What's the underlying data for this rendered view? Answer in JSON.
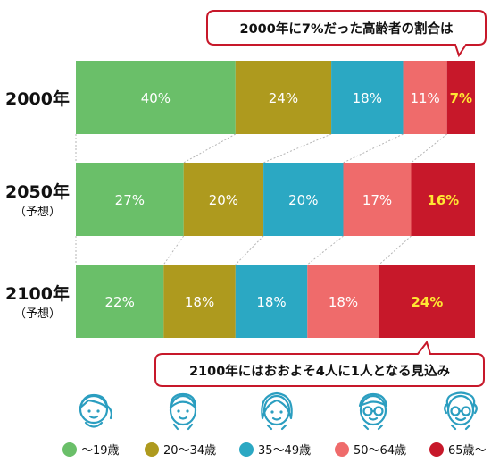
{
  "chart_data": {
    "type": "stacked-bar-horizontal",
    "unit": "%",
    "series": [
      {
        "name": "〜19歳",
        "color": "#6abf69"
      },
      {
        "name": "20〜34歳",
        "color": "#ae9a1e"
      },
      {
        "name": "35〜49歳",
        "color": "#2ba8c3"
      },
      {
        "name": "50〜64歳",
        "color": "#ef6b6b"
      },
      {
        "name": "65歳〜",
        "color": "#c7182a"
      }
    ],
    "rows": [
      {
        "label": "2000年",
        "sublabel": "",
        "values": [
          40,
          24,
          18,
          11,
          7
        ],
        "value_labels": [
          "40%",
          "24%",
          "18%",
          "11%",
          "7%"
        ]
      },
      {
        "label": "2050年",
        "sublabel": "（予想）",
        "values": [
          27,
          20,
          20,
          17,
          16
        ],
        "value_labels": [
          "27%",
          "20%",
          "20%",
          "17%",
          "16%"
        ]
      },
      {
        "label": "2100年",
        "sublabel": "（予想）",
        "values": [
          22,
          18,
          18,
          18,
          24
        ],
        "value_labels": [
          "22%",
          "18%",
          "18%",
          "18%",
          "24%"
        ]
      }
    ],
    "highlight_series": 4,
    "highlight_label_color": "#ffe633",
    "annotations": [
      {
        "text": "2000年に7%だった高齢者の割合は",
        "row": 0,
        "position": "top-right"
      },
      {
        "text": "2100年にはおおよそ4人に1人となる見込み",
        "row": 2,
        "position": "bottom-right"
      }
    ],
    "legend": {
      "position": "bottom",
      "icons": [
        "child-face-icon",
        "young-adult-face-icon",
        "adult-face-icon",
        "middle-aged-face-icon",
        "elderly-face-icon"
      ]
    },
    "callout_border_color": "#c7182a"
  }
}
